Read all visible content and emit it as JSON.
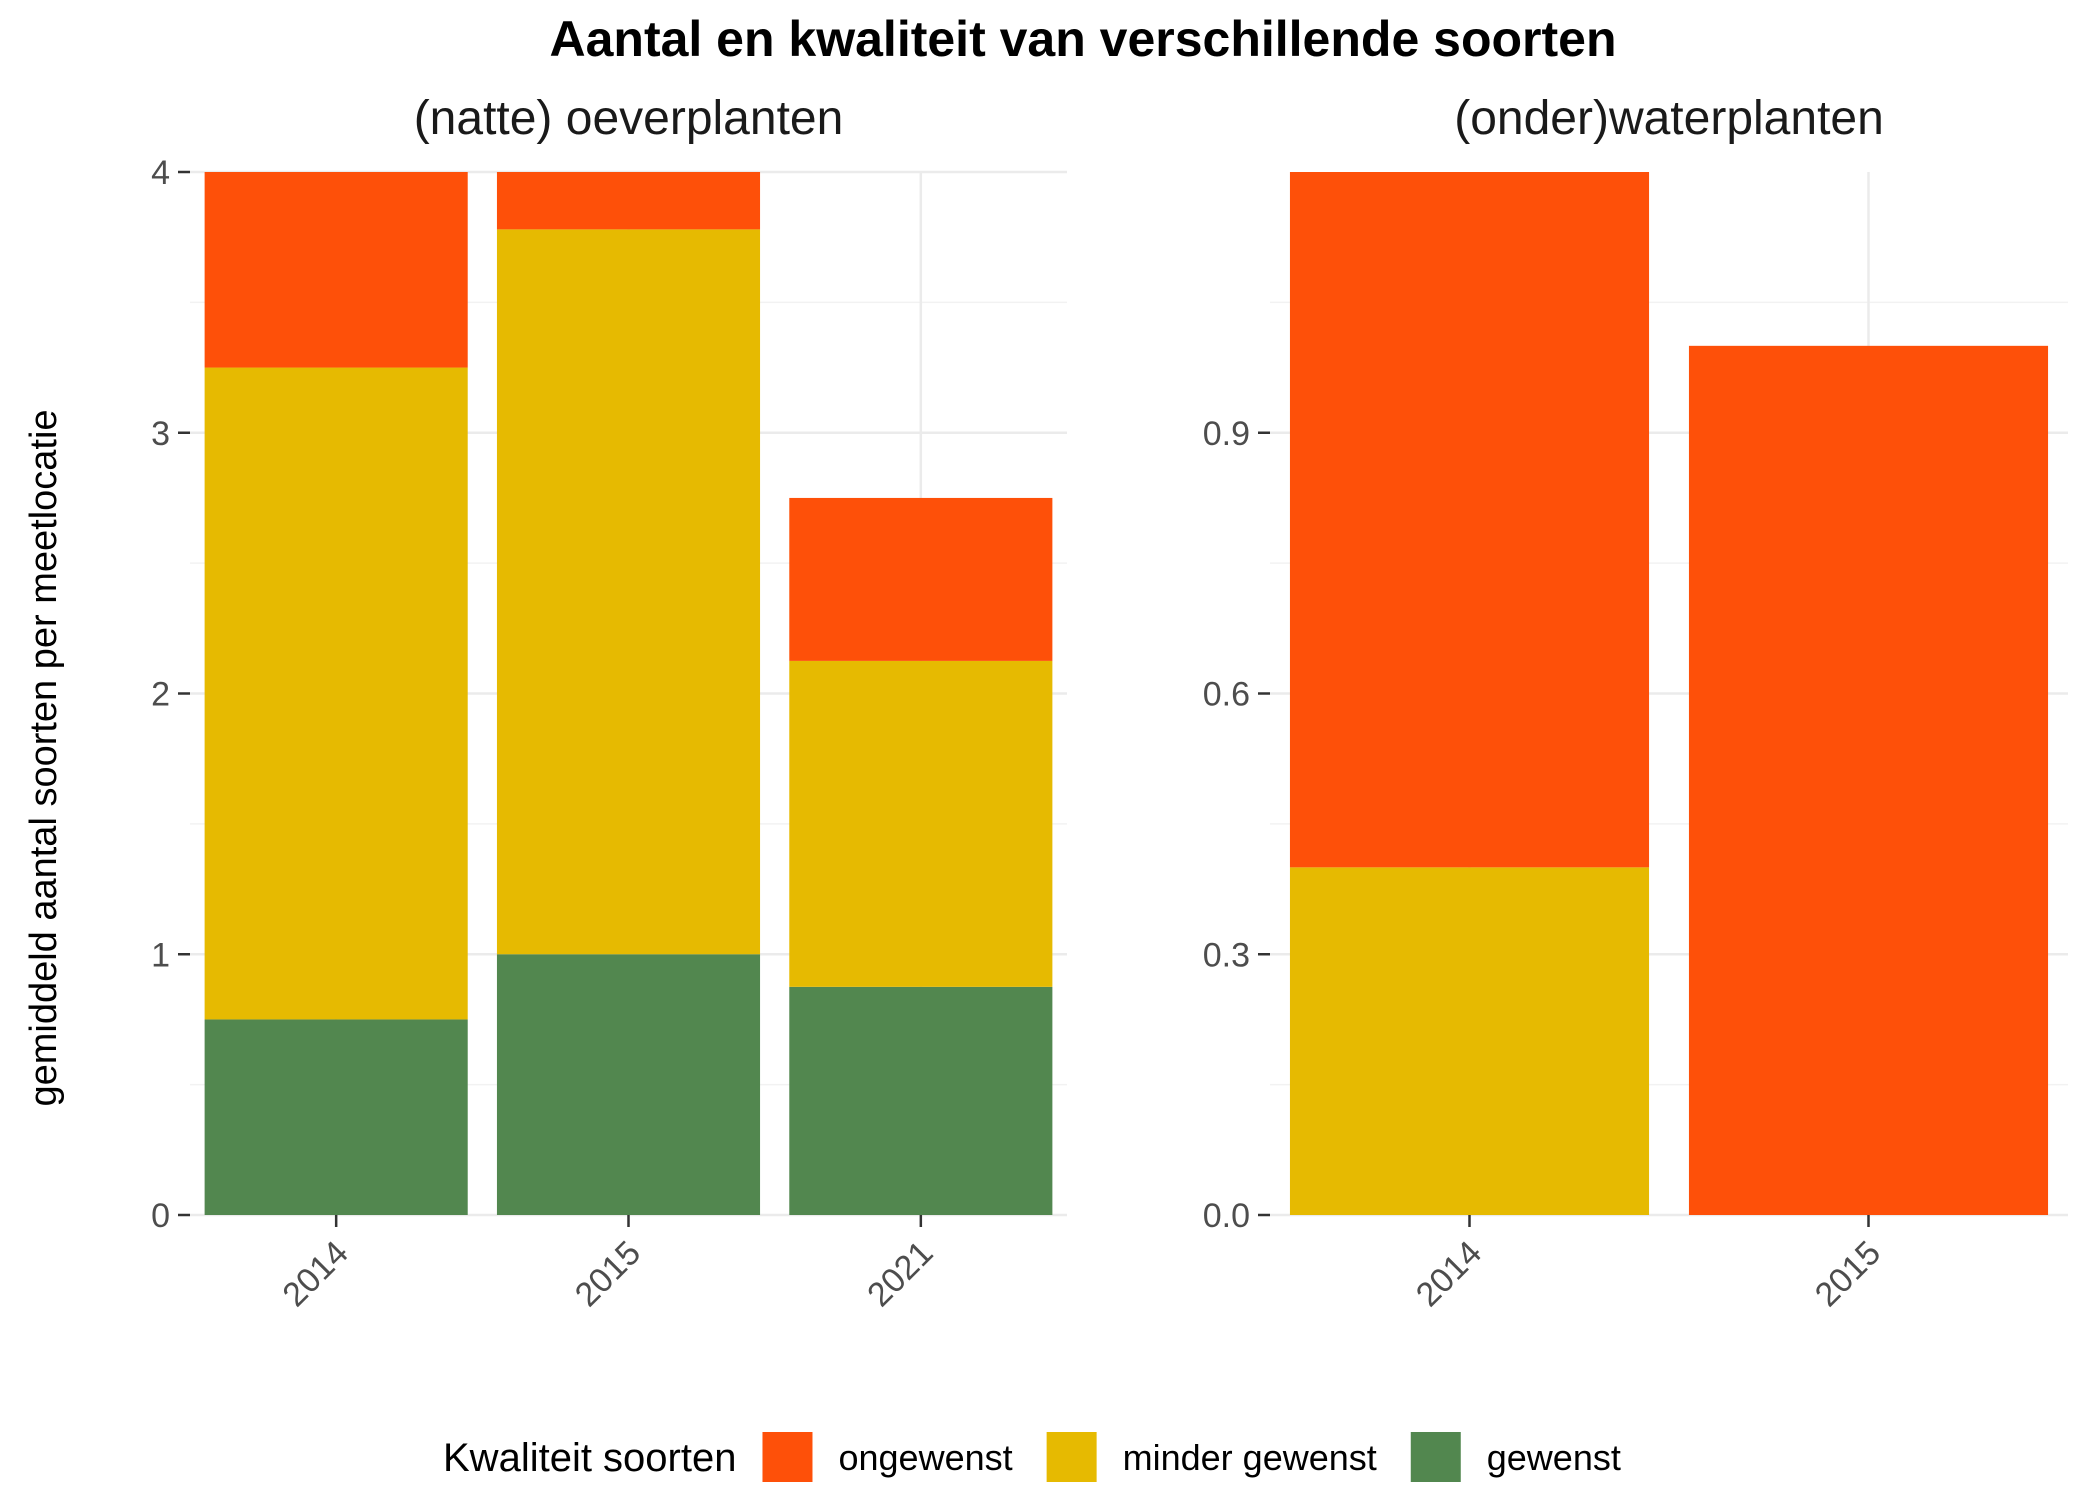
{
  "chart_data": {
    "type": "bar",
    "stacked": true,
    "title": "Aantal en kwaliteit van verschillende soorten",
    "ylabel": "gemiddeld aantal soorten per meetlocatie",
    "grid": true,
    "legend": {
      "title": "Kwaliteit soorten",
      "placement": "bottom",
      "entries": [
        {
          "name": "ongewenst",
          "color": "#FE5009"
        },
        {
          "name": "minder gewenst",
          "color": "#E6BA01"
        },
        {
          "name": "gewenst",
          "color": "#52874F"
        }
      ]
    },
    "facets": [
      {
        "title": "(natte) oeverplanten",
        "categories": [
          "2014",
          "2015",
          "2021"
        ],
        "ylim": [
          0,
          4
        ],
        "yticks": [
          0,
          1,
          2,
          3,
          4
        ],
        "ytick_labels": [
          "0",
          "1",
          "2",
          "3",
          "4"
        ],
        "series": [
          {
            "name": "gewenst",
            "values": [
              0.75,
              1.0,
              0.875
            ]
          },
          {
            "name": "minder gewenst",
            "values": [
              2.5,
              2.78,
              1.25
            ]
          },
          {
            "name": "ongewenst",
            "values": [
              0.75,
              0.22,
              0.625
            ]
          }
        ]
      },
      {
        "title": "(onder)waterplanten",
        "categories": [
          "2014",
          "2015"
        ],
        "ylim": [
          0,
          1.2
        ],
        "yticks": [
          0.0,
          0.3,
          0.6,
          0.9
        ],
        "ytick_labels": [
          "0.0",
          "0.3",
          "0.6",
          "0.9"
        ],
        "series": [
          {
            "name": "gewenst",
            "values": [
              0,
              0
            ]
          },
          {
            "name": "minder gewenst",
            "values": [
              0.4,
              0
            ]
          },
          {
            "name": "ongewenst",
            "values": [
              0.8,
              1.0
            ]
          }
        ]
      }
    ]
  }
}
